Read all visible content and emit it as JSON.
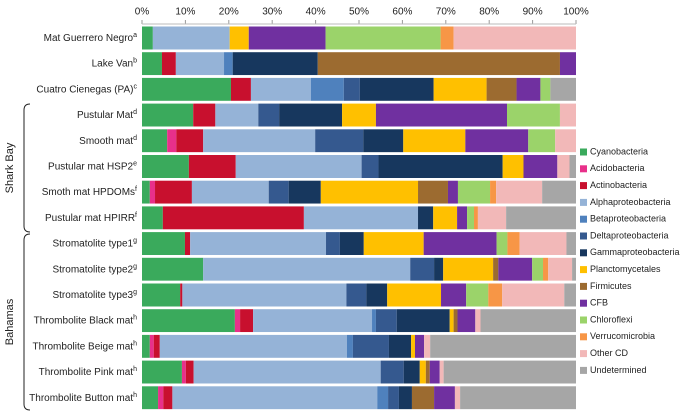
{
  "chart_data": {
    "type": "stacked_barh",
    "categories": [
      "Mat Guerrero Negro",
      "Lake Van",
      "Cuatro Cienegas (PA)",
      "Pustular Mat",
      "Smooth mat",
      "Pustular mat HSP2",
      "Smoth mat HPDOMs",
      "Pustular mat HPIRR",
      "Stromatolite type1",
      "Stromatolite type2",
      "Stromatolite type3",
      "Thrombolite Black mat",
      "Thrombolite Beige mat",
      "Thrombolite Pink mat",
      "Thrombolite Button mat"
    ],
    "category_notes": [
      "a",
      "b",
      "c",
      "d",
      "d",
      "e",
      "f",
      "f",
      "g",
      "g",
      "g",
      "h",
      "h",
      "h",
      "h"
    ],
    "groups": [
      "Shark Bay",
      "Bahamas"
    ],
    "xlim": [
      0,
      100
    ],
    "xticks": [
      {
        "value": 0,
        "label": "0%"
      },
      {
        "value": 10,
        "label": "10%"
      },
      {
        "value": 20,
        "label": "20%"
      },
      {
        "value": 30,
        "label": "30%"
      },
      {
        "value": 40,
        "label": "40%"
      },
      {
        "value": 50,
        "label": "50%"
      },
      {
        "value": 60,
        "label": "60%"
      },
      {
        "value": 70,
        "label": "70%"
      },
      {
        "value": 80,
        "label": "80%"
      },
      {
        "value": 90,
        "label": "90%"
      },
      {
        "value": 100,
        "label": "100%"
      }
    ],
    "series": [
      {
        "name": "Cyanobacteria",
        "color": "#3aaa5c",
        "values": [
          2.5,
          4.6,
          20.5,
          11.8,
          5.8,
          10.8,
          1.8,
          4.8,
          9.9,
          14.1,
          8.8,
          21.4,
          1.8,
          9.2,
          3.7
        ]
      },
      {
        "name": "Acidobacteria",
        "color": "#e8308a",
        "values": [
          0,
          0,
          0,
          0,
          2.1,
          0,
          1.2,
          0,
          0,
          0,
          0,
          1.2,
          0.9,
          0.9,
          1.2
        ]
      },
      {
        "name": "Actinobacteria",
        "color": "#c8102e",
        "values": [
          0,
          3.2,
          4.6,
          5.1,
          6.2,
          10.8,
          8.5,
          32.5,
          1.2,
          0,
          0.5,
          3,
          1.4,
          1.8,
          2.1
        ]
      },
      {
        "name": "Alphaproteobacteria",
        "color": "#95b3d7",
        "values": [
          17.7,
          11.1,
          13.8,
          9.9,
          25.8,
          29,
          17.7,
          26.3,
          31.3,
          47.7,
          37.8,
          27.4,
          43.1,
          43.1,
          47.2
        ]
      },
      {
        "name": "Betaproteobacteria",
        "color": "#4f81bd",
        "values": [
          0,
          2,
          7.6,
          0,
          0,
          0,
          0,
          0,
          0,
          0,
          0,
          0.9,
          1.4,
          0,
          2.5
        ]
      },
      {
        "name": "Deltaproteobacteria",
        "color": "#35598f",
        "values": [
          0,
          0,
          3.7,
          4.8,
          11.1,
          3.9,
          4.6,
          0,
          3.2,
          5.5,
          4.6,
          4.8,
          8.3,
          5.3,
          2.5
        ]
      },
      {
        "name": "Gammaproteobacteria",
        "color": "#17375e",
        "values": [
          0,
          19.6,
          17,
          14.5,
          9.2,
          28.6,
          7.4,
          3.5,
          5.5,
          2.1,
          4.8,
          12.2,
          5.1,
          3.7,
          3
        ]
      },
      {
        "name": "Planctomycetales",
        "color": "#ffc000",
        "values": [
          4.4,
          0,
          12.2,
          7.8,
          14.3,
          4.8,
          22.4,
          5.5,
          13.8,
          11.5,
          12.4,
          0.9,
          0.9,
          1.4,
          0
        ]
      },
      {
        "name": "Firmicutes",
        "color": "#9c6b30",
        "values": [
          0,
          55.8,
          6.9,
          0,
          0,
          0,
          6.9,
          0,
          0,
          1.2,
          0,
          0.9,
          0,
          0.9,
          5.1
        ]
      },
      {
        "name": "CFB",
        "color": "#7030a0",
        "values": [
          17.7,
          3.7,
          5.5,
          30.2,
          14.5,
          7.8,
          2.3,
          2.3,
          16.8,
          7.8,
          5.8,
          4.1,
          2.1,
          2.3,
          4.8
        ]
      },
      {
        "name": "Chloroflexi",
        "color": "#9bd36a",
        "values": [
          26.5,
          0,
          2.3,
          12.2,
          6.2,
          0,
          7.4,
          1.6,
          2.5,
          2.5,
          5.1,
          0,
          0,
          0,
          0
        ]
      },
      {
        "name": "Verrucomicrobia",
        "color": "#f79646",
        "values": [
          3,
          0,
          0,
          0,
          0,
          0,
          1.4,
          0.9,
          2.8,
          1.2,
          3.2,
          0,
          0,
          0,
          0
        ]
      },
      {
        "name": "Other CD",
        "color": "#f2b8b8",
        "values": [
          28.2,
          0,
          0,
          3.7,
          4.8,
          2.8,
          10.6,
          6.5,
          10.8,
          5.5,
          14.3,
          1.2,
          1.4,
          0.9,
          1.2
        ]
      },
      {
        "name": "Undetermined",
        "color": "#a6a6a6",
        "values": [
          0,
          0,
          5.9,
          0,
          0,
          1.5,
          7.8,
          16.1,
          2.2,
          0.9,
          2.7,
          22.0,
          33.6,
          30.5,
          26.7
        ]
      }
    ]
  }
}
